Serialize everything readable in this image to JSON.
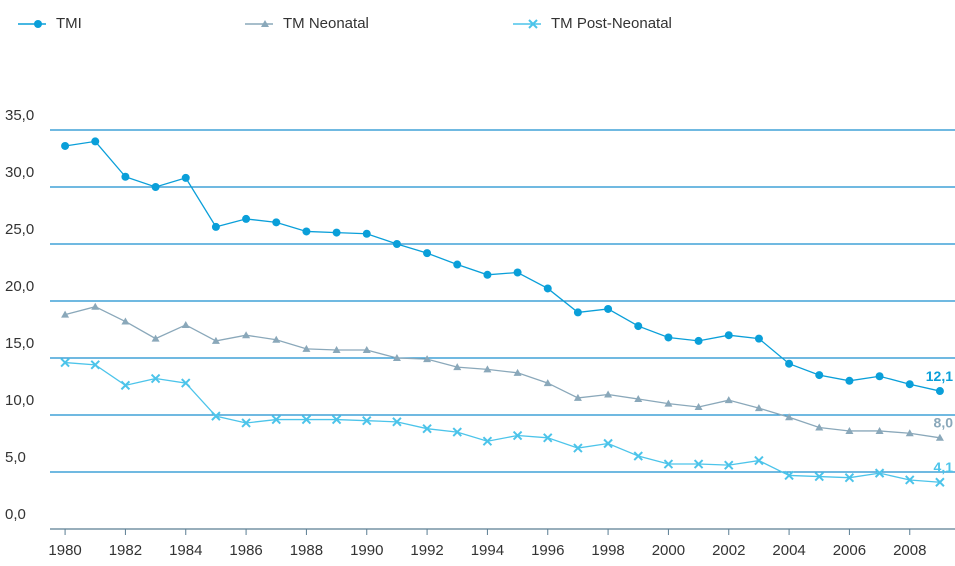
{
  "chart_data": {
    "type": "line",
    "x": [
      1980,
      1981,
      1982,
      1983,
      1984,
      1985,
      1986,
      1987,
      1988,
      1989,
      1990,
      1991,
      1992,
      1993,
      1994,
      1995,
      1996,
      1997,
      1998,
      1999,
      2000,
      2001,
      2002,
      2003,
      2004,
      2005,
      2006,
      2007,
      2008,
      2009
    ],
    "series": [
      {
        "name": "TMI",
        "color": "#0a9fd9",
        "marker": "circle",
        "values": [
          33.6,
          34.0,
          30.9,
          30.0,
          30.8,
          26.5,
          27.2,
          26.9,
          26.1,
          26.0,
          25.9,
          25.0,
          24.2,
          23.2,
          22.3,
          22.5,
          21.1,
          19.0,
          19.3,
          17.8,
          16.8,
          16.5,
          17.0,
          16.7,
          14.5,
          13.5,
          13.0,
          13.4,
          12.7,
          12.1
        ],
        "value_labels": [
          null,
          null,
          null,
          null,
          null,
          null,
          null,
          null,
          null,
          null,
          null,
          null,
          null,
          null,
          null,
          null,
          null,
          null,
          null,
          null,
          null,
          null,
          null,
          null,
          null,
          null,
          null,
          null,
          null,
          "12,1"
        ]
      },
      {
        "name": "TM Neonatal",
        "color": "#8aa8ba",
        "marker": "triangle",
        "values": [
          18.8,
          19.5,
          18.2,
          16.7,
          17.9,
          16.5,
          17.0,
          16.6,
          15.8,
          15.7,
          15.7,
          15.0,
          14.9,
          14.2,
          14.0,
          13.7,
          12.8,
          11.5,
          11.8,
          11.4,
          11.0,
          10.7,
          11.3,
          10.6,
          9.8,
          8.9,
          8.6,
          8.6,
          8.4,
          8.0
        ],
        "value_labels": [
          null,
          null,
          null,
          null,
          null,
          null,
          null,
          null,
          null,
          null,
          null,
          null,
          null,
          null,
          null,
          null,
          null,
          null,
          null,
          null,
          null,
          null,
          null,
          null,
          null,
          null,
          null,
          null,
          null,
          "8,0"
        ]
      },
      {
        "name": "TM Post-Neonatal",
        "color": "#4cc4ea",
        "marker": "x",
        "values": [
          14.6,
          14.4,
          12.6,
          13.2,
          12.8,
          9.9,
          9.3,
          9.6,
          9.6,
          9.6,
          9.5,
          9.4,
          8.8,
          8.5,
          7.7,
          8.2,
          8.0,
          7.1,
          7.5,
          6.4,
          5.7,
          5.7,
          5.6,
          6.0,
          4.7,
          4.6,
          4.5,
          4.9,
          4.3,
          4.1
        ],
        "value_labels": [
          null,
          null,
          null,
          null,
          null,
          null,
          null,
          null,
          null,
          null,
          null,
          null,
          null,
          null,
          null,
          null,
          null,
          null,
          null,
          null,
          null,
          null,
          null,
          null,
          null,
          null,
          null,
          null,
          null,
          "4,1"
        ]
      }
    ],
    "xlim": [
      1979.5,
      2009.5
    ],
    "xticks": [
      1980,
      1982,
      1984,
      1986,
      1988,
      1990,
      1992,
      1994,
      1996,
      1998,
      2000,
      2002,
      2004,
      2006,
      2008
    ],
    "ylim": [
      0,
      35
    ],
    "yticks": [
      {
        "value": 0,
        "label": "0,0"
      },
      {
        "value": 5,
        "label": "5,0"
      },
      {
        "value": 10,
        "label": "10,0"
      },
      {
        "value": 15,
        "label": "15,0"
      },
      {
        "value": 20,
        "label": "20,0"
      },
      {
        "value": 25,
        "label": "25,0"
      },
      {
        "value": 30,
        "label": "30,0"
      },
      {
        "value": 35,
        "label": "35,0"
      }
    ],
    "grid": true
  }
}
